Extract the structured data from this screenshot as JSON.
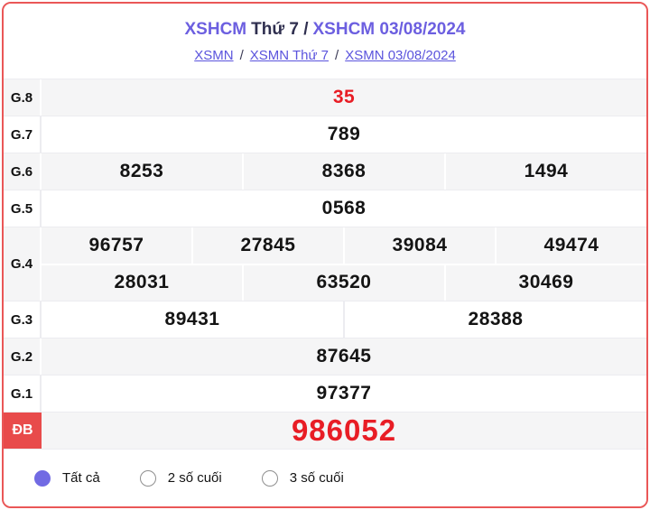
{
  "header": {
    "title": {
      "part1": "XSHCM",
      "part2": "Thứ 7 /",
      "part3": "XSHCM 03/08/2024"
    },
    "breadcrumbs": [
      {
        "label": "XSMN"
      },
      {
        "label": "XSMN Thứ 7"
      },
      {
        "label": "XSMN 03/08/2024"
      }
    ],
    "breadcrumb_separator": "/"
  },
  "results": {
    "rows": [
      {
        "label": "G.8",
        "shade": "gray",
        "special": false,
        "lines": [
          [
            {
              "v": "35",
              "red": true
            }
          ]
        ]
      },
      {
        "label": "G.7",
        "shade": "white",
        "special": false,
        "lines": [
          [
            {
              "v": "789"
            }
          ]
        ]
      },
      {
        "label": "G.6",
        "shade": "gray",
        "special": false,
        "lines": [
          [
            {
              "v": "8253"
            },
            {
              "v": "8368"
            },
            {
              "v": "1494"
            }
          ]
        ]
      },
      {
        "label": "G.5",
        "shade": "white",
        "special": false,
        "lines": [
          [
            {
              "v": "0568"
            }
          ]
        ]
      },
      {
        "label": "G.4",
        "shade": "gray",
        "special": false,
        "lines": [
          [
            {
              "v": "96757"
            },
            {
              "v": "27845"
            },
            {
              "v": "39084"
            },
            {
              "v": "49474"
            }
          ],
          [
            {
              "v": "28031"
            },
            {
              "v": "63520"
            },
            {
              "v": "30469"
            }
          ]
        ]
      },
      {
        "label": "G.3",
        "shade": "white",
        "special": false,
        "lines": [
          [
            {
              "v": "89431"
            },
            {
              "v": "28388"
            }
          ]
        ]
      },
      {
        "label": "G.2",
        "shade": "gray",
        "special": false,
        "lines": [
          [
            {
              "v": "87645"
            }
          ]
        ]
      },
      {
        "label": "G.1",
        "shade": "white",
        "special": false,
        "lines": [
          [
            {
              "v": "97377"
            }
          ]
        ]
      },
      {
        "label": "ĐB",
        "shade": "gray",
        "special": true,
        "lines": [
          [
            {
              "v": "986052",
              "red": true,
              "big": true
            }
          ]
        ]
      }
    ]
  },
  "filters": {
    "options": [
      {
        "label": "Tất cả",
        "selected": true
      },
      {
        "label": "2 số cuối",
        "selected": false
      },
      {
        "label": "3 số cuối",
        "selected": false
      }
    ]
  },
  "colors": {
    "card_border": "#ea5757",
    "title_accent": "#6c5fe0",
    "title_dark": "#2f2f4f",
    "link": "#5b54dd",
    "row_gray": "#f5f5f6",
    "red_text": "#e81d25",
    "special_badge": "#e84b4b",
    "radio_selected": "#716ae3"
  }
}
